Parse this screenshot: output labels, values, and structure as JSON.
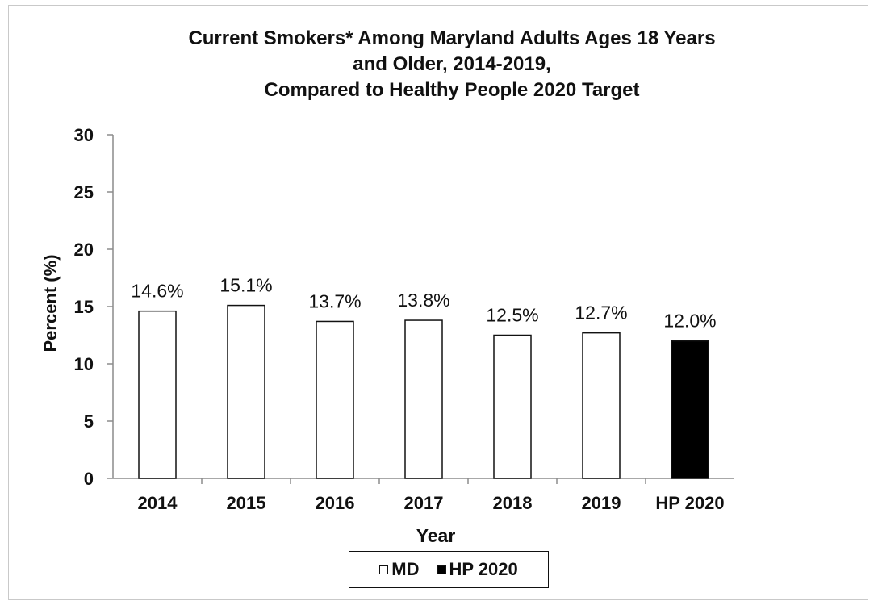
{
  "chart_data": {
    "type": "bar",
    "title": [
      "Current Smokers* Among Maryland Adults Ages 18 Years",
      "and Older, 2014-2019,",
      "Compared to Healthy People 2020 Target"
    ],
    "xlabel": "Year",
    "ylabel": "Percent (%)",
    "ylim": [
      0,
      30
    ],
    "yticks": [
      "0",
      "5",
      "10",
      "15",
      "20",
      "25",
      "30"
    ],
    "categories": [
      "2014",
      "2015",
      "2016",
      "2017",
      "2018",
      "2019",
      "HP 2020"
    ],
    "values": [
      14.6,
      15.1,
      13.7,
      13.8,
      12.5,
      12.7,
      12.0
    ],
    "data_labels": [
      "14.6%",
      "15.1%",
      "13.7%",
      "13.8%",
      "12.5%",
      "12.7%",
      "12.0%"
    ],
    "bar_series": [
      "MD",
      "MD",
      "MD",
      "MD",
      "MD",
      "MD",
      "HP 2020"
    ],
    "series_colors": {
      "MD": "#ffffff",
      "HP 2020": "#000000"
    },
    "grid": false,
    "legend_position": "bottom",
    "legend": [
      {
        "name": "MD",
        "color": "#ffffff"
      },
      {
        "name": "HP 2020",
        "color": "#000000"
      }
    ]
  }
}
